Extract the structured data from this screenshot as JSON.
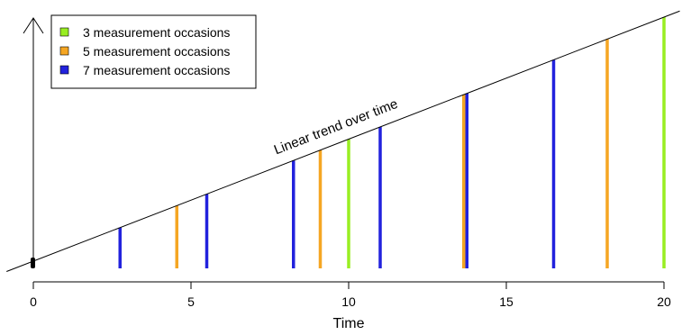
{
  "chart_data": {
    "type": "line",
    "title": "",
    "xlabel": "Time",
    "ylabel": "",
    "xlim": [
      0,
      20
    ],
    "x_ticks": [
      0,
      5,
      10,
      15,
      20
    ],
    "trend_label": "Linear trend over time",
    "legend_position": "top-left",
    "series": [
      {
        "name": "3 measurement occasions",
        "color": "#99ee22",
        "x": [
          0,
          10,
          20
        ]
      },
      {
        "name": "5 measurement occasions",
        "color": "#f5a623",
        "x": [
          0,
          4.55,
          9.1,
          13.65,
          18.2
        ]
      },
      {
        "name": "7 measurement occasions",
        "color": "#2222dd",
        "x": [
          0,
          2.75,
          5.5,
          8.25,
          11,
          13.75,
          16.5
        ]
      }
    ],
    "y_axis_arrow": true
  }
}
